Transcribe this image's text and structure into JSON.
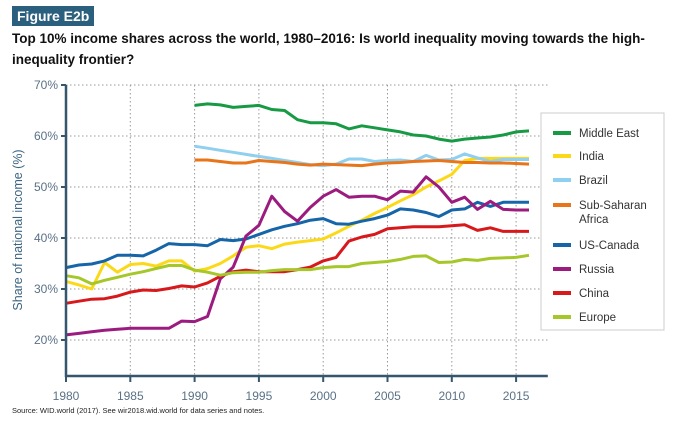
{
  "figure_label": "Figure E2b",
  "title": "Top 10% income shares across the world, 1980–2016: Is world inequality moving towards the high-inequality frontier?",
  "source": "Source: WID.world (2017). See wir2018.wid.world for data series and notes.",
  "chart_data": {
    "type": "line",
    "ylabel": "Share of national income (%)",
    "xlabel": "",
    "xlim": [
      1980,
      2017
    ],
    "ylim": [
      20,
      70
    ],
    "x_ticks": [
      "1980",
      "1985",
      "1990",
      "1995",
      "2000",
      "2005",
      "2010",
      "2015"
    ],
    "y_ticks": [
      "20%",
      "30%",
      "40%",
      "50%",
      "60%",
      "70%"
    ],
    "grid": true,
    "legend_position": "right",
    "series": [
      {
        "name": "Middle East",
        "color": "#179a43",
        "start": 1990,
        "values": [
          66,
          66.3,
          66.1,
          65.6,
          65.8,
          66,
          65.2,
          65,
          63.2,
          62.6,
          62.6,
          62.4,
          61.4,
          62,
          61.6,
          61.2,
          60.8,
          60.2,
          60,
          59.4,
          59,
          59.4,
          59.6,
          59.8,
          60.2,
          60.8,
          61
        ]
      },
      {
        "name": "India",
        "color": "#fbd918",
        "start": 1980,
        "values": [
          31.5,
          30.8,
          30,
          35.2,
          33.3,
          34.8,
          35,
          34.5,
          35.5,
          35.5,
          33.5,
          34,
          35,
          36.5,
          38.2,
          38.5,
          37.9,
          38.8,
          39.2,
          39.5,
          39.8,
          41,
          42.3,
          43.5,
          44.8,
          46,
          47.3,
          48.5,
          50,
          51.2,
          52.5,
          55.2,
          55.6,
          55.6,
          55.6,
          55.6,
          55.6
        ]
      },
      {
        "name": "Brazil",
        "color": "#8fcff0",
        "start": 1990,
        "values": [
          58,
          57.6,
          57.2,
          56.8,
          56.4,
          56,
          55.6,
          55.2,
          54.8,
          54.4,
          54.2,
          54.5,
          55.5,
          55.5,
          55,
          55.2,
          55.3,
          55,
          56.2,
          55.3,
          55.4,
          56.5,
          55.7,
          55,
          55.4,
          55.4,
          55.4
        ]
      },
      {
        "name": "Sub-Saharan Africa",
        "color": "#e8751a",
        "start": 1990,
        "values": [
          55.3,
          55.3,
          55,
          54.7,
          54.7,
          55.2,
          55,
          54.8,
          54.5,
          54.3,
          54.5,
          54.4,
          54.3,
          54.2,
          54.5,
          54.7,
          54.8,
          55,
          55.1,
          55.2,
          55,
          54.8,
          54.8,
          54.7,
          54.7,
          54.6,
          54.5
        ]
      },
      {
        "name": "US-Canada",
        "color": "#1565a8",
        "start": 1980,
        "values": [
          34.2,
          34.7,
          34.9,
          35.5,
          36.6,
          36.6,
          36.5,
          37.6,
          38.9,
          38.7,
          38.7,
          38.5,
          39.7,
          39.5,
          39.8,
          40.7,
          41.6,
          42.3,
          42.8,
          43.5,
          43.8,
          42.8,
          42.7,
          43.3,
          43.8,
          44.5,
          45.7,
          45.5,
          45,
          44.2,
          45.5,
          45.7,
          47,
          46.2,
          47,
          47,
          47
        ]
      },
      {
        "name": "Russia",
        "color": "#9b1b7e",
        "start": 1980,
        "values": [
          21,
          21.3,
          21.6,
          21.9,
          22.1,
          22.3,
          22.3,
          22.3,
          22.3,
          23.7,
          23.6,
          24.6,
          32,
          34.3,
          40.4,
          42.5,
          48.2,
          45.2,
          43.3,
          46,
          48.2,
          49.5,
          48,
          48.2,
          48.2,
          47.5,
          49.2,
          49,
          52,
          50,
          47,
          48,
          45.6,
          47.2,
          45.6,
          45.5,
          45.5
        ]
      },
      {
        "name": "China",
        "color": "#d7191c",
        "start": 1980,
        "values": [
          27.2,
          27.6,
          28,
          28.1,
          28.6,
          29.4,
          29.8,
          29.7,
          30.1,
          30.6,
          30.4,
          31.2,
          32.5,
          33.4,
          33.7,
          33.4,
          33.4,
          33.4,
          33.8,
          34.3,
          35.5,
          36.2,
          39.4,
          40.2,
          40.7,
          41.8,
          42,
          42.2,
          42.2,
          42.2,
          42.4,
          42.6,
          41.5,
          42,
          41.3,
          41.3,
          41.3
        ]
      },
      {
        "name": "Europe",
        "color": "#a6c72a",
        "start": 1980,
        "values": [
          32.6,
          32.2,
          31,
          31.7,
          32.3,
          32.9,
          33.4,
          34,
          34.6,
          34.6,
          33.7,
          33.3,
          32.7,
          33.2,
          33.3,
          33.3,
          33.6,
          33.8,
          33.8,
          33.8,
          34.2,
          34.4,
          34.4,
          35,
          35.2,
          35.4,
          35.8,
          36.4,
          36.5,
          35.2,
          35.3,
          35.8,
          35.6,
          36,
          36.1,
          36.2,
          36.6
        ]
      }
    ],
    "legend_labels": [
      "Middle East",
      "India",
      "Brazil",
      "Sub-Saharan",
      "Africa",
      "US-Canada",
      "Russia",
      "China",
      "Europe"
    ]
  }
}
